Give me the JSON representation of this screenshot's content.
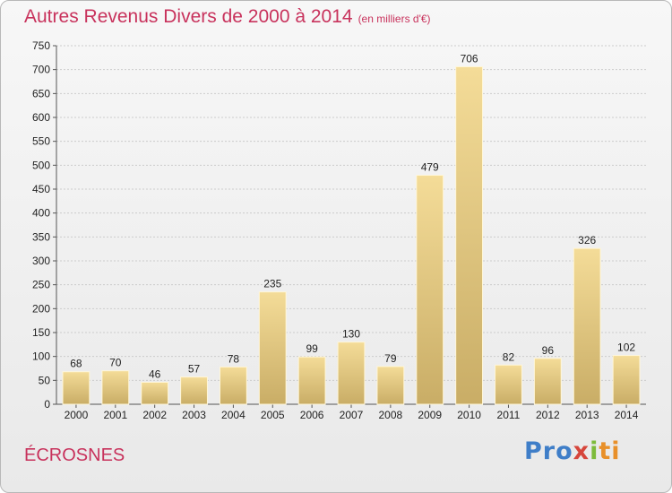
{
  "header": {
    "title": "Autres Revenus Divers de 2000 à 2014",
    "subtitle": "(en milliers d'€)"
  },
  "footer": {
    "place": "ÉCROSNES",
    "logo": [
      "Pro",
      "x",
      "i",
      "ti"
    ]
  },
  "colors": {
    "title": "#c8325c",
    "bar_light": "#f4dc98",
    "bar_dark": "#c9ad66",
    "grid": "#cccccc"
  },
  "chart_data": {
    "type": "bar",
    "title": "Autres Revenus Divers de 2000 à 2014",
    "subtitle": "(en milliers d'€)",
    "xlabel": "",
    "ylabel": "",
    "categories": [
      "2000",
      "2001",
      "2002",
      "2003",
      "2004",
      "2005",
      "2006",
      "2007",
      "2008",
      "2009",
      "2010",
      "2011",
      "2012",
      "2013",
      "2014"
    ],
    "values": [
      68,
      70,
      46,
      57,
      78,
      235,
      99,
      130,
      79,
      479,
      706,
      82,
      96,
      326,
      102
    ],
    "ylim": [
      0,
      750
    ],
    "yticks": [
      0,
      50,
      100,
      150,
      200,
      250,
      300,
      350,
      400,
      450,
      500,
      550,
      600,
      650,
      700,
      750
    ],
    "grid": true,
    "legend": "none"
  }
}
